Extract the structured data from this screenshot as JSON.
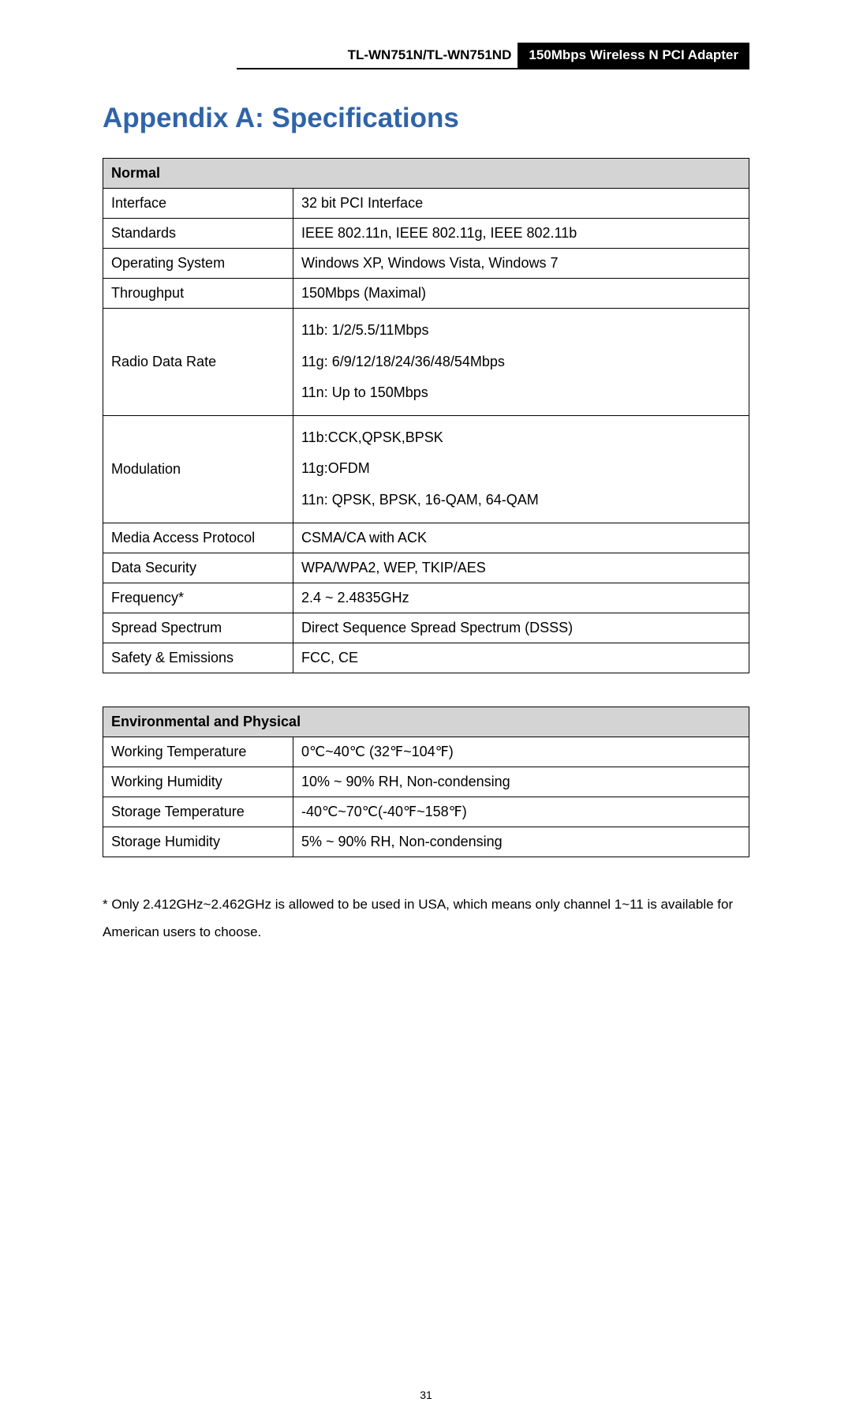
{
  "header": {
    "model": "TL-WN751N/TL-WN751ND",
    "product": "150Mbps Wireless N PCI Adapter"
  },
  "title": "Appendix A: Specifications",
  "tables": {
    "normal": {
      "header": "Normal",
      "rows": [
        {
          "label": "Interface",
          "value": "32 bit PCI Interface"
        },
        {
          "label": "Standards",
          "value": "IEEE 802.11n, IEEE 802.11g, IEEE 802.11b"
        },
        {
          "label": "Operating System",
          "value": "Windows XP, Windows Vista, Windows 7"
        },
        {
          "label": "Throughput",
          "value": "150Mbps (Maximal)"
        },
        {
          "label": "Radio Data Rate",
          "value": "11b: 1/2/5.5/11Mbps\n11g: 6/9/12/18/24/36/48/54Mbps\n11n: Up to 150Mbps"
        },
        {
          "label": "Modulation",
          "value": "11b:CCK,QPSK,BPSK\n11g:OFDM\n11n: QPSK, BPSK, 16-QAM, 64-QAM"
        },
        {
          "label": "Media Access Protocol",
          "value": "CSMA/CA with ACK"
        },
        {
          "label": "Data Security",
          "value": "WPA/WPA2, WEP, TKIP/AES"
        },
        {
          "label": "Frequency*",
          "value": "2.4 ~ 2.4835GHz"
        },
        {
          "label": "Spread Spectrum",
          "value": "Direct Sequence Spread Spectrum (DSSS)"
        },
        {
          "label": "Safety & Emissions",
          "value": "FCC, CE"
        }
      ]
    },
    "env": {
      "header": "Environmental and Physical",
      "rows": [
        {
          "label": "Working Temperature",
          "value": "0℃~40℃ (32℉~104℉)"
        },
        {
          "label": "Working Humidity",
          "value": "10% ~ 90% RH, Non-condensing"
        },
        {
          "label": "Storage Temperature",
          "value": "-40℃~70℃(-40℉~158℉)"
        },
        {
          "label": "Storage Humidity",
          "value": "5% ~ 90% RH, Non-condensing"
        }
      ]
    }
  },
  "footnote": "* Only 2.412GHz~2.462GHz is allowed to be used in USA, which means only channel 1~11 is available for American users to choose.",
  "page_number": "31"
}
